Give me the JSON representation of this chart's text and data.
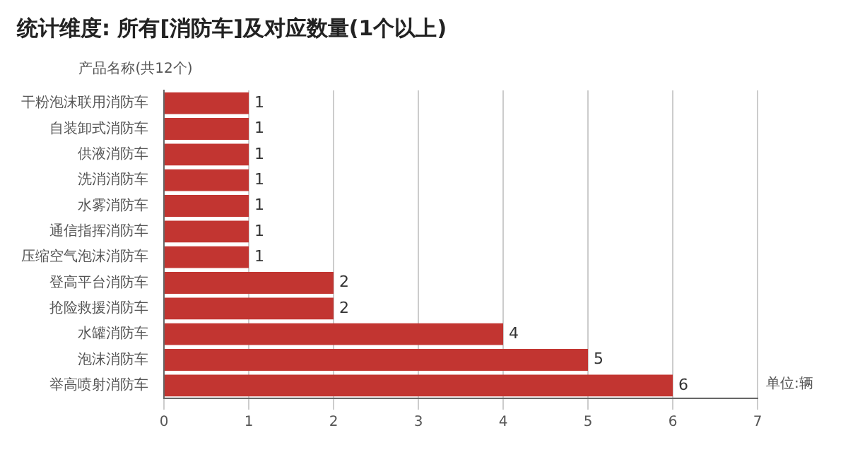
{
  "chart_data": {
    "type": "bar",
    "orientation": "horizontal",
    "title": "统计维度: 所有[消防车]及对应数量(1个以上)",
    "ylabel": "产品名称(共12个)",
    "xlabel": "单位:辆",
    "categories": [
      "干粉泡沫联用消防车",
      "自装卸式消防车",
      "供液消防车",
      "洗消消防车",
      "水雾消防车",
      "通信指挥消防车",
      "压缩空气泡沫消防车",
      "登高平台消防车",
      "抢险救援消防车",
      "水罐消防车",
      "泡沫消防车",
      "举高喷射消防车"
    ],
    "values": [
      1,
      1,
      1,
      1,
      1,
      1,
      1,
      2,
      2,
      4,
      5,
      6
    ],
    "color": "#c23531",
    "xlim": [
      0,
      7
    ],
    "xticks": [
      0,
      1,
      2,
      3,
      4,
      5,
      6,
      7
    ],
    "grid": "x",
    "data_labels": true,
    "legend": false
  }
}
